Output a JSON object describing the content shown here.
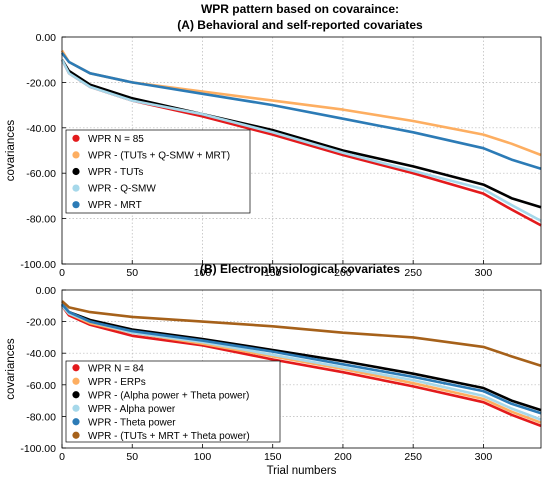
{
  "chart_data": [
    {
      "type": "line",
      "title": [
        "WPR pattern based on covaraince:",
        "(A) Behavioral and self-reported covariates"
      ],
      "xlabel": "",
      "ylabel": "covariances",
      "xlim": [
        0,
        341
      ],
      "ylim": [
        -100,
        0
      ],
      "xticks": [
        0,
        50,
        100,
        150,
        200,
        250,
        300
      ],
      "yticks": [
        0,
        -20,
        -40,
        -60,
        -80,
        -100
      ],
      "ytick_labels": [
        "0.00",
        "-20.00",
        "-40.00",
        "-60.00",
        "-80.00",
        "-100.00"
      ],
      "grid": true,
      "legend_position": "bottom-left",
      "series": [
        {
          "name": "WPR  N = 85",
          "color": "#e31a1c",
          "x": [
            0,
            5,
            20,
            50,
            100,
            150,
            200,
            250,
            300,
            320,
            341
          ],
          "y": [
            -10,
            -16,
            -22,
            -28,
            -35,
            -43,
            -52,
            -60,
            -69,
            -76,
            -83
          ]
        },
        {
          "name": "WPR - (TUTs + Q-SMW + MRT)",
          "color": "#fdae61",
          "x": [
            0,
            5,
            20,
            50,
            100,
            150,
            200,
            250,
            300,
            320,
            341
          ],
          "y": [
            -6,
            -11,
            -16,
            -20,
            -24,
            -28,
            -32,
            -37,
            -43,
            -47,
            -52
          ]
        },
        {
          "name": "WPR - TUTs",
          "color": "#000000",
          "x": [
            0,
            5,
            20,
            50,
            100,
            150,
            200,
            250,
            300,
            320,
            341
          ],
          "y": [
            -10,
            -15,
            -21,
            -27,
            -34,
            -41,
            -50,
            -57,
            -65,
            -71,
            -75
          ]
        },
        {
          "name": "WPR - Q-SMW",
          "color": "#a6d8ea",
          "x": [
            0,
            5,
            20,
            50,
            100,
            150,
            200,
            250,
            300,
            320,
            341
          ],
          "y": [
            -10,
            -16,
            -22,
            -28,
            -34,
            -42,
            -51,
            -59,
            -67,
            -74,
            -81
          ]
        },
        {
          "name": "WPR - MRT",
          "color": "#2c7bb6",
          "x": [
            0,
            5,
            20,
            50,
            100,
            150,
            200,
            250,
            300,
            320,
            341
          ],
          "y": [
            -7,
            -11,
            -16,
            -20,
            -25,
            -30,
            -36,
            -42,
            -49,
            -54,
            -58
          ]
        }
      ]
    },
    {
      "type": "line",
      "title": [
        "(B) Electrophysiological covariates"
      ],
      "xlabel": "Trial numbers",
      "ylabel": "covariances",
      "xlim": [
        0,
        341
      ],
      "ylim": [
        -100,
        0
      ],
      "xticks": [
        0,
        50,
        100,
        150,
        200,
        250,
        300
      ],
      "yticks": [
        0,
        -20,
        -40,
        -60,
        -80,
        -100
      ],
      "ytick_labels": [
        "0.00",
        "-20.00",
        "-40.00",
        "-60.00",
        "-80.00",
        "-100.00"
      ],
      "grid": true,
      "legend_position": "bottom-left",
      "series": [
        {
          "name": "WPR  N = 84",
          "color": "#e31a1c",
          "x": [
            0,
            5,
            20,
            50,
            100,
            150,
            200,
            250,
            300,
            320,
            341
          ],
          "y": [
            -10,
            -16,
            -22,
            -29,
            -35,
            -44,
            -52,
            -61,
            -71,
            -79,
            -86
          ]
        },
        {
          "name": "WPR - ERPs",
          "color": "#fdae61",
          "x": [
            0,
            5,
            20,
            50,
            100,
            150,
            200,
            250,
            300,
            320,
            341
          ],
          "y": [
            -10,
            -15,
            -21,
            -27,
            -34,
            -42,
            -50,
            -59,
            -69,
            -77,
            -84
          ]
        },
        {
          "name": "WPR - (Alpha power + Theta power)",
          "color": "#000000",
          "x": [
            0,
            5,
            20,
            50,
            100,
            150,
            200,
            250,
            300,
            320,
            341
          ],
          "y": [
            -9,
            -14,
            -19,
            -25,
            -31,
            -38,
            -45,
            -53,
            -62,
            -70,
            -76
          ]
        },
        {
          "name": "WPR - Alpha power",
          "color": "#a6d8ea",
          "x": [
            0,
            5,
            20,
            50,
            100,
            150,
            200,
            250,
            300,
            320,
            341
          ],
          "y": [
            -10,
            -15,
            -20,
            -27,
            -33,
            -41,
            -49,
            -57,
            -67,
            -75,
            -82
          ]
        },
        {
          "name": "WPR - Theta power",
          "color": "#2c7bb6",
          "x": [
            0,
            5,
            20,
            50,
            100,
            150,
            200,
            250,
            300,
            320,
            341
          ],
          "y": [
            -9,
            -14,
            -20,
            -26,
            -32,
            -39,
            -47,
            -55,
            -64,
            -72,
            -78
          ]
        },
        {
          "name": "WPR - (TUTs + MRT + Theta power)",
          "color": "#a6611a",
          "x": [
            0,
            5,
            20,
            50,
            100,
            150,
            200,
            250,
            300,
            320,
            341
          ],
          "y": [
            -7,
            -11,
            -14,
            -17,
            -20,
            -23,
            -27,
            -30,
            -36,
            -42,
            -48
          ]
        }
      ]
    }
  ]
}
